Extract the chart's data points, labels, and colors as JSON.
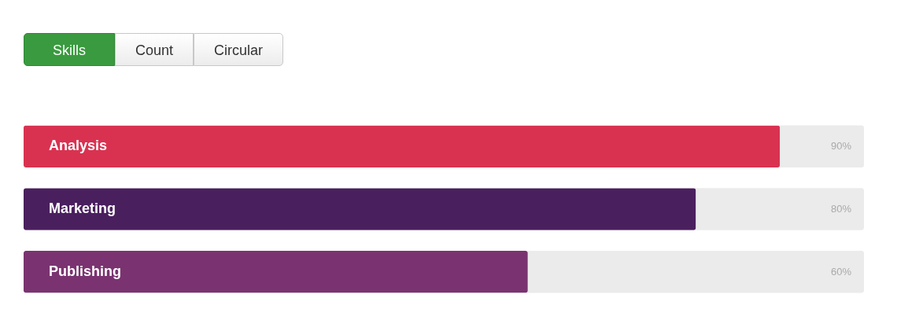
{
  "chart_data": {
    "type": "bar",
    "orientation": "horizontal",
    "categories": [
      "Analysis",
      "Marketing",
      "Publishing"
    ],
    "values": [
      90,
      80,
      60
    ],
    "colors": [
      "#d93251",
      "#4a1f5e",
      "#7a3370"
    ],
    "value_labels": [
      "90%",
      "80%",
      "60%"
    ],
    "xlim": [
      0,
      100
    ],
    "tick_labels": "y",
    "annotations": [
      "Skills",
      "Count",
      "Circular"
    ]
  }
}
